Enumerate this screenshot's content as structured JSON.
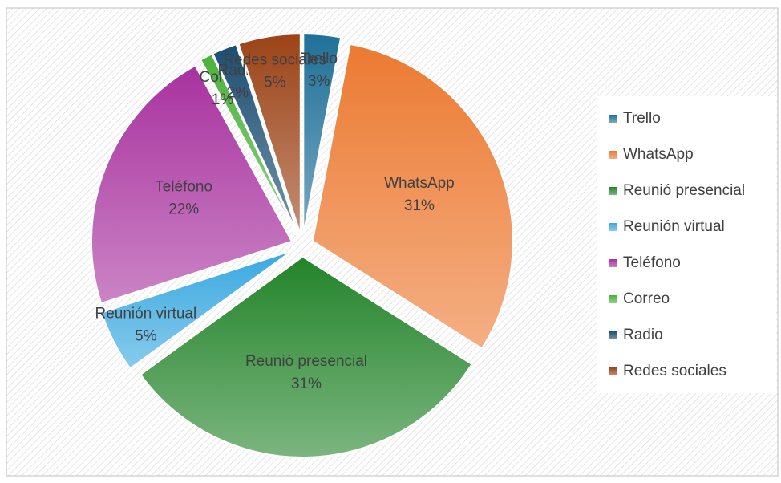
{
  "chart_data": {
    "type": "pie",
    "categories": [
      "Trello",
      "WhatsApp",
      "Reunió presencial",
      "Reunión virtual",
      "Teléfono",
      "Correo",
      "Radio",
      "Redes sociales"
    ],
    "values": [
      3,
      31,
      31,
      5,
      22,
      1,
      2,
      5
    ],
    "value_labels": [
      "3%",
      "31%",
      "31%",
      "5%",
      "22%",
      "1%",
      "2%",
      "5%"
    ],
    "colors": [
      "#1f7098",
      "#ec7a32",
      "#23842a",
      "#39a8e0",
      "#a8329f",
      "#4bb23a",
      "#1c4e72",
      "#9c4317"
    ],
    "legend": "right"
  }
}
